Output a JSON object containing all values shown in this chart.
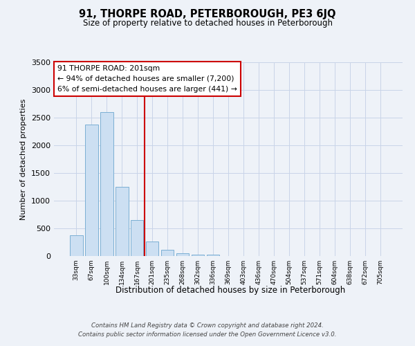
{
  "title": "91, THORPE ROAD, PETERBOROUGH, PE3 6JQ",
  "subtitle": "Size of property relative to detached houses in Peterborough",
  "xlabel": "Distribution of detached houses by size in Peterborough",
  "ylabel": "Number of detached properties",
  "bar_labels": [
    "33sqm",
    "67sqm",
    "100sqm",
    "134sqm",
    "167sqm",
    "201sqm",
    "235sqm",
    "268sqm",
    "302sqm",
    "336sqm",
    "369sqm",
    "403sqm",
    "436sqm",
    "470sqm",
    "504sqm",
    "537sqm",
    "571sqm",
    "604sqm",
    "638sqm",
    "672sqm",
    "705sqm"
  ],
  "bar_values": [
    380,
    2380,
    2600,
    1250,
    650,
    260,
    110,
    50,
    30,
    20,
    0,
    0,
    0,
    0,
    0,
    0,
    0,
    0,
    0,
    0,
    0
  ],
  "bar_color": "#ccdff2",
  "bar_edge_color": "#7aafd4",
  "vline_index": 5,
  "vline_color": "#cc0000",
  "ylim": [
    0,
    3500
  ],
  "yticks": [
    0,
    500,
    1000,
    1500,
    2000,
    2500,
    3000,
    3500
  ],
  "annotation_line1": "91 THORPE ROAD: 201sqm",
  "annotation_line2": "← 94% of detached houses are smaller (7,200)",
  "annotation_line3": "6% of semi-detached houses are larger (441) →",
  "annotation_box_color": "#ffffff",
  "annotation_box_edge": "#cc0000",
  "footer_line1": "Contains HM Land Registry data © Crown copyright and database right 2024.",
  "footer_line2": "Contains public sector information licensed under the Open Government Licence v3.0.",
  "bg_color": "#eef2f8"
}
